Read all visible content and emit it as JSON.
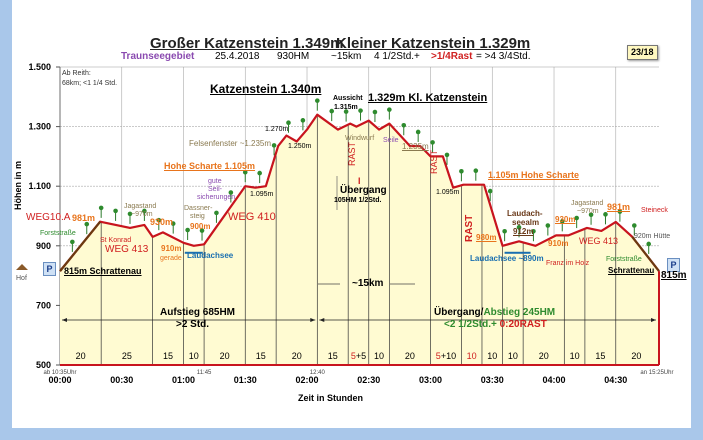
{
  "title": {
    "left": "Großer Katzenstein 1.349m",
    "right": "Kleiner Katzenstein 1.329m"
  },
  "subtitle": {
    "region": "Traunseegebiet",
    "date": "25.4.2018",
    "hm": "930HM",
    "km": "~15km",
    "time": "4 1/2Std.+",
    "rest": ">1/4Rast",
    "total": "= >4 3/4Std."
  },
  "badge": "23/18",
  "labels": {
    "ab_reith": "Ab Reith:",
    "ab_reith2": "68km; <1 1/4 Std.",
    "katzenstein": "Katzenstein 1.340m",
    "aussicht": "Aussicht",
    "aussicht_h": "1.315m",
    "kl_katzenstein": "1.329m Kl. Katzenstein",
    "felsenfenster": "Felsenfenster ~1.235m",
    "h1270": "1.270m",
    "h1250": "1.250m",
    "hohe_scharte_l": "Hohe Scharte 1.105m",
    "gute": "gute",
    "seil": "Seil-",
    "sicherungen": "sicherungen",
    "h1095_l": "1.095m",
    "jagastand_l": "Jagastand",
    "jagastand_l2": "~970m",
    "dassner": "Dassner-",
    "steig": "steig",
    "h900": "900m",
    "weg410": "WEG 410",
    "weg10a": "WEG10.A",
    "h981_l": "981m",
    "h930_l": "930m",
    "forst_l": "Forststraße",
    "st_konrad": "St Konrad",
    "weg413_l": "WEG 413",
    "h910_l": "910m",
    "gerade": "gerade",
    "laudachsee_l": "Laudachsee",
    "p": "P",
    "hof": "Hof",
    "start": "815m Schrattenau",
    "windwurf": "Windwurf",
    "seile": "Seile",
    "h1235_r": "1.235m",
    "rast": "RAST",
    "i": "I",
    "uebergang": "Übergang",
    "uebergang2": "105HM  1/2Std.",
    "h1095_r": "1.095m",
    "hohe_scharte_r": "1.105m Hohe Scharte",
    "laudach": "Laudach-",
    "seealm": "seealm",
    "h912": "912m",
    "h980": "980m",
    "laudachsee_r": "Laudachsee ~890m",
    "h930_r": "930m",
    "h910_r": "910m",
    "franz": "Franz im Holz",
    "jagastand_r": "Jagastand",
    "jagastand_r2": "~970m",
    "h981_r": "981m",
    "steineck": "Steineck",
    "weg413_r": "WEG 413",
    "huette": "920m Hütte",
    "forst_r": "Forststraße",
    "schrattenau_r": "Schrattenau",
    "end": "815m",
    "km15": "~15km",
    "aufstieg": "Aufstieg 685HM",
    "aufstieg2": ">2 Std.",
    "abstieg_a": "Übergang/",
    "abstieg_b": "Abstieg 245HM",
    "abstieg2_a": "<2 1/2Std.+ ",
    "abstieg2_b": "0:20RAST"
  },
  "chart_data": {
    "type": "area",
    "ylabel": "Höhen in m",
    "xlabel": "Zeit in Stunden",
    "ylim": [
      500,
      1500
    ],
    "xlim_min": [
      0,
      291
    ],
    "y_ticks": [
      {
        "v": 1500,
        "t": "1.500"
      },
      {
        "v": 1300,
        "t": "1.300"
      },
      {
        "v": 1100,
        "t": "1.100"
      },
      {
        "v": 900,
        "t": "900"
      },
      {
        "v": 700,
        "t": "700"
      },
      {
        "v": 500,
        "t": "500"
      }
    ],
    "x_ticks": [
      {
        "v": 0,
        "t": "00:00"
      },
      {
        "v": 30,
        "t": "00:30"
      },
      {
        "v": 60,
        "t": "01:00"
      },
      {
        "v": 90,
        "t": "01:30"
      },
      {
        "v": 120,
        "t": "02:00"
      },
      {
        "v": 150,
        "t": "02:30"
      },
      {
        "v": 180,
        "t": "03:00"
      },
      {
        "v": 210,
        "t": "03:30"
      },
      {
        "v": 240,
        "t": "04:00"
      },
      {
        "v": 270,
        "t": "04:30"
      }
    ],
    "clock_labels": [
      {
        "v": 0,
        "t": "ab 10:35Uhr"
      },
      {
        "v": 70,
        "t": "11:45"
      },
      {
        "v": 125,
        "t": "12:40"
      },
      {
        "v": 290,
        "t": "an 15:25Uhr"
      }
    ],
    "profile": [
      [
        0,
        815
      ],
      [
        19.5,
        981
      ],
      [
        34,
        960
      ],
      [
        41,
        970
      ],
      [
        45,
        930
      ],
      [
        50,
        945
      ],
      [
        60,
        910
      ],
      [
        65,
        900
      ],
      [
        70,
        905
      ],
      [
        90,
        1100
      ],
      [
        95,
        1095
      ],
      [
        100,
        1100
      ],
      [
        106,
        1235
      ],
      [
        110,
        1270
      ],
      [
        115,
        1250
      ],
      [
        120,
        1290
      ],
      [
        125,
        1340
      ],
      [
        135,
        1290
      ],
      [
        141,
        1310
      ],
      [
        144,
        1300
      ],
      [
        150,
        1320
      ],
      [
        155,
        1290
      ],
      [
        160,
        1310
      ],
      [
        170,
        1235
      ],
      [
        175,
        1235
      ],
      [
        180,
        1200
      ],
      [
        186,
        1200
      ],
      [
        191,
        1095
      ],
      [
        196,
        1105
      ],
      [
        206,
        1105
      ],
      [
        215,
        900
      ],
      [
        223,
        915
      ],
      [
        231,
        900
      ],
      [
        241,
        935
      ],
      [
        247,
        935
      ],
      [
        256,
        960
      ],
      [
        263,
        950
      ],
      [
        270,
        980
      ],
      [
        278,
        930
      ],
      [
        291,
        815
      ]
    ],
    "segments": [
      {
        "min": 20,
        "walk": "20"
      },
      {
        "min": 25,
        "walk": "25"
      },
      {
        "min": 15,
        "walk": "15"
      },
      {
        "min": 10,
        "walk": "10"
      },
      {
        "min": 20,
        "walk": "20"
      },
      {
        "min": 15,
        "walk": "15"
      },
      {
        "min": 20,
        "walk": "20"
      },
      {
        "min": 15,
        "walk": "15"
      },
      {
        "min": 10,
        "rest": "5",
        "walk": "+5"
      },
      {
        "min": 10,
        "walk": "10"
      },
      {
        "min": 20,
        "walk": "20"
      },
      {
        "min": 15,
        "rest": "5",
        "walk": "+10"
      },
      {
        "min": 10,
        "rest": "10",
        "walk": ""
      },
      {
        "min": 10,
        "walk": "10"
      },
      {
        "min": 10,
        "walk": "10"
      },
      {
        "min": 20,
        "walk": "20"
      },
      {
        "min": 10,
        "walk": "10"
      },
      {
        "min": 15,
        "walk": "15"
      },
      {
        "min": 20,
        "walk": "20"
      }
    ],
    "colors": {
      "line": "#c8141e",
      "fill": "#fffbd2",
      "rest": "#d02020",
      "forest": "#2e8b2e"
    }
  }
}
